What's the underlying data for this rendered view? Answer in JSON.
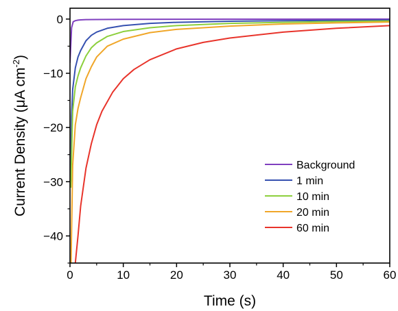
{
  "chart_data": {
    "type": "line",
    "xlabel": "Time (s)",
    "ylabel": "Current Density (μA cm",
    "ylabel_superscript": "-2",
    "ylabel_close": ")",
    "xlim": [
      0,
      60
    ],
    "ylim": [
      -45,
      2
    ],
    "x_ticks": [
      0,
      10,
      20,
      30,
      40,
      50,
      60
    ],
    "x_tick_labels": [
      "0",
      "10",
      "20",
      "30",
      "40",
      "50",
      "60"
    ],
    "y_ticks": [
      0,
      -10,
      -20,
      -30,
      -40
    ],
    "y_tick_labels": [
      "0",
      "−10",
      "−20",
      "−30",
      "−40"
    ],
    "grid": false,
    "legend_position": "bottom-right",
    "series": [
      {
        "name": "Background",
        "color": "#7f3fbf",
        "x": [
          0.0,
          0.3,
          0.6,
          1,
          1.5,
          2,
          3,
          5,
          10,
          20,
          30,
          40,
          50,
          60
        ],
        "y": [
          -8.0,
          -1.6,
          -0.5,
          -0.3,
          -0.2,
          -0.15,
          -0.1,
          -0.08,
          -0.05,
          -0.03,
          -0.02,
          -0.02,
          -0.01,
          -0.01
        ]
      },
      {
        "name": "1 min",
        "color": "#3550b0",
        "x": [
          0.15,
          0.3,
          0.5,
          1,
          1.5,
          2,
          3,
          4,
          5,
          7,
          10,
          15,
          20,
          30,
          40,
          50,
          60
        ],
        "y": [
          -30.0,
          -18.0,
          -13.0,
          -9.0,
          -7.0,
          -5.8,
          -4.0,
          -3.0,
          -2.4,
          -1.7,
          -1.2,
          -0.8,
          -0.6,
          -0.4,
          -0.3,
          -0.25,
          -0.2
        ]
      },
      {
        "name": "10 min",
        "color": "#8ccf3c",
        "x": [
          0.15,
          0.5,
          1,
          1.5,
          2,
          3,
          4,
          5,
          7,
          10,
          15,
          20,
          30,
          40,
          50,
          60
        ],
        "y": [
          -31.0,
          -17.0,
          -12.5,
          -10.5,
          -9.0,
          -6.8,
          -5.3,
          -4.4,
          -3.2,
          -2.3,
          -1.6,
          -1.2,
          -0.8,
          -0.6,
          -0.45,
          -0.35
        ]
      },
      {
        "name": "20 min",
        "color": "#f0a628",
        "x": [
          0.2,
          0.5,
          1,
          1.5,
          2,
          3,
          4,
          5,
          7,
          10,
          15,
          20,
          30,
          40,
          50,
          60
        ],
        "y": [
          -45.0,
          -27.0,
          -19.5,
          -16.5,
          -14.5,
          -11.0,
          -8.8,
          -7.0,
          -5.0,
          -3.7,
          -2.5,
          -1.9,
          -1.3,
          -0.9,
          -0.7,
          -0.55
        ]
      },
      {
        "name": "60 min",
        "color": "#e8332a",
        "x": [
          1.0,
          1.5,
          2,
          3,
          4,
          5,
          6,
          8,
          10,
          12,
          15,
          20,
          25,
          30,
          40,
          50,
          60
        ],
        "y": [
          -45.0,
          -40.0,
          -34.5,
          -27.5,
          -23.0,
          -19.5,
          -17.0,
          -13.5,
          -11.0,
          -9.3,
          -7.5,
          -5.5,
          -4.3,
          -3.5,
          -2.4,
          -1.7,
          -1.2
        ]
      }
    ]
  }
}
